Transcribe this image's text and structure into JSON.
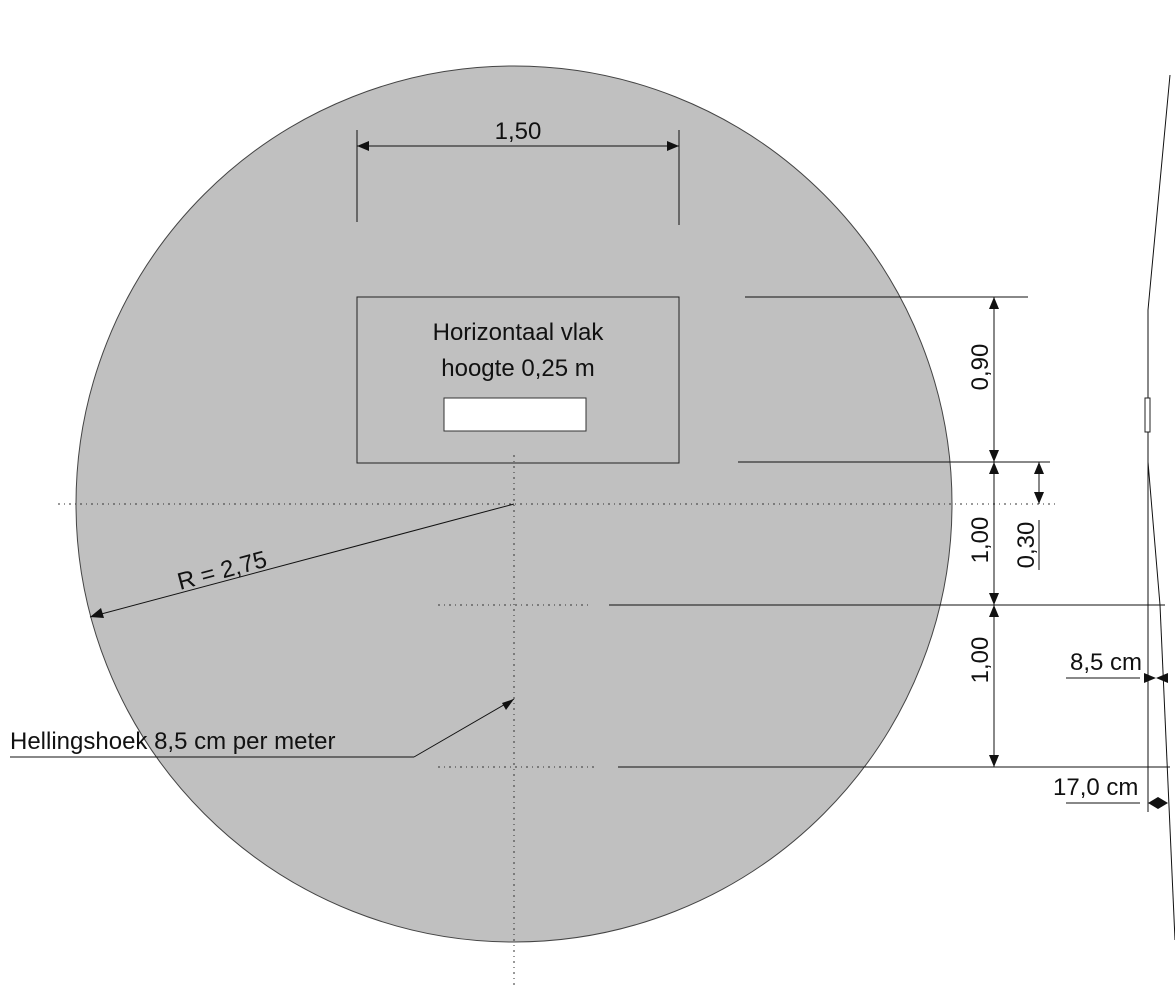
{
  "circle": {
    "fill": "#c0c0c0",
    "radius_label": "R = 2,75"
  },
  "top_dimension": {
    "label": "1,50"
  },
  "platform": {
    "line1": "Horizontaal vlak",
    "line2": "hoogte  0,25 m"
  },
  "right_dimensions": {
    "d1": "0,90",
    "d2": "1,00",
    "d3": "1,00",
    "d4": "0,30"
  },
  "slope": {
    "label": "Hellingshoek 8,5 cm per meter"
  },
  "side_profile": {
    "offset1": "8,5 cm",
    "offset2": "17,0 cm"
  }
}
